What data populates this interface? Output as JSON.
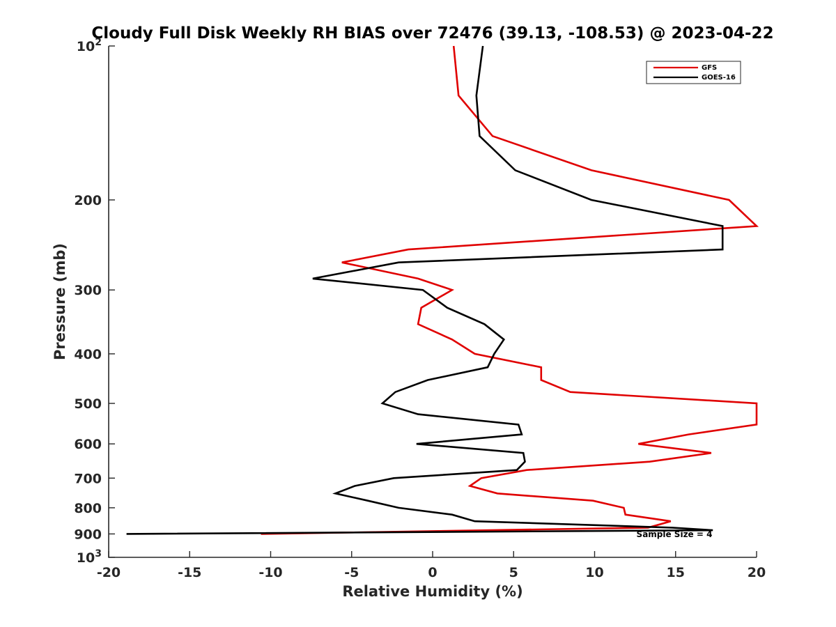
{
  "chart_data": {
    "type": "line",
    "title": "Cloudy Full Disk Weekly RH BIAS over 72476 (39.13, -108.53) @ 2023-04-22",
    "xlabel": "Relative Humidity (%)",
    "ylabel": "Pressure (mb)",
    "xlim": [
      -20,
      20
    ],
    "ylim": [
      100,
      1000
    ],
    "y_scale": "log",
    "y_reversed": true,
    "x_ticks": [
      -20,
      -15,
      -10,
      -5,
      0,
      5,
      10,
      15,
      20
    ],
    "x_tick_labels": [
      "-20",
      "-15",
      "-10",
      "-5",
      "0",
      "5",
      "10",
      "15",
      "20"
    ],
    "y_ticks": [
      100,
      200,
      300,
      400,
      500,
      600,
      700,
      800,
      900,
      1000
    ],
    "y_tick_labels": [
      {
        "base": "10",
        "exp": "2"
      },
      {
        "base": "200"
      },
      {
        "base": "300"
      },
      {
        "base": "400"
      },
      {
        "base": "500"
      },
      {
        "base": "600"
      },
      {
        "base": "700"
      },
      {
        "base": "800"
      },
      {
        "base": "900"
      },
      {
        "base": "10",
        "exp": "3"
      }
    ],
    "grid": false,
    "legend_position": "top-right",
    "annotation": "Sample Size = 4",
    "series": [
      {
        "name": "GFS",
        "color": "#e00000",
        "points": [
          [
            1.3,
            100
          ],
          [
            1.6,
            125
          ],
          [
            3.7,
            150
          ],
          [
            9.8,
            175
          ],
          [
            18.3,
            200
          ],
          [
            20.0,
            225
          ],
          [
            -1.5,
            250
          ],
          [
            -5.6,
            265
          ],
          [
            -0.9,
            285
          ],
          [
            1.2,
            300
          ],
          [
            -0.7,
            325
          ],
          [
            -0.9,
            350
          ],
          [
            1.2,
            375
          ],
          [
            2.6,
            400
          ],
          [
            6.7,
            425
          ],
          [
            6.7,
            450
          ],
          [
            8.5,
            475
          ],
          [
            20.0,
            500
          ],
          [
            20.0,
            550
          ],
          [
            15.8,
            575
          ],
          [
            12.7,
            600
          ],
          [
            17.2,
            625
          ],
          [
            13.4,
            650
          ],
          [
            5.8,
            675
          ],
          [
            3.0,
            700
          ],
          [
            2.3,
            725
          ],
          [
            4.0,
            750
          ],
          [
            9.9,
            775
          ],
          [
            11.8,
            800
          ],
          [
            11.9,
            825
          ],
          [
            14.7,
            850
          ],
          [
            13.3,
            875
          ],
          [
            -10.6,
            900
          ]
        ]
      },
      {
        "name": "GOES-16",
        "color": "#000000",
        "points": [
          [
            3.1,
            100
          ],
          [
            2.7,
            125
          ],
          [
            2.9,
            150
          ],
          [
            5.1,
            175
          ],
          [
            9.8,
            200
          ],
          [
            17.9,
            225
          ],
          [
            17.9,
            250
          ],
          [
            -2.1,
            265
          ],
          [
            -7.4,
            285
          ],
          [
            -0.6,
            300
          ],
          [
            0.9,
            325
          ],
          [
            3.2,
            350
          ],
          [
            4.4,
            375
          ],
          [
            3.8,
            400
          ],
          [
            3.4,
            425
          ],
          [
            -0.3,
            450
          ],
          [
            -2.3,
            475
          ],
          [
            -3.1,
            500
          ],
          [
            -0.9,
            525
          ],
          [
            5.3,
            550
          ],
          [
            5.5,
            575
          ],
          [
            -1.0,
            600
          ],
          [
            5.6,
            625
          ],
          [
            5.7,
            650
          ],
          [
            5.2,
            675
          ],
          [
            -2.4,
            700
          ],
          [
            -4.8,
            725
          ],
          [
            -6.0,
            750
          ],
          [
            -4.0,
            775
          ],
          [
            -2.1,
            800
          ],
          [
            1.2,
            825
          ],
          [
            2.6,
            850
          ],
          [
            14.8,
            875
          ],
          [
            17.3,
            885
          ],
          [
            -18.9,
            900
          ]
        ]
      }
    ]
  }
}
